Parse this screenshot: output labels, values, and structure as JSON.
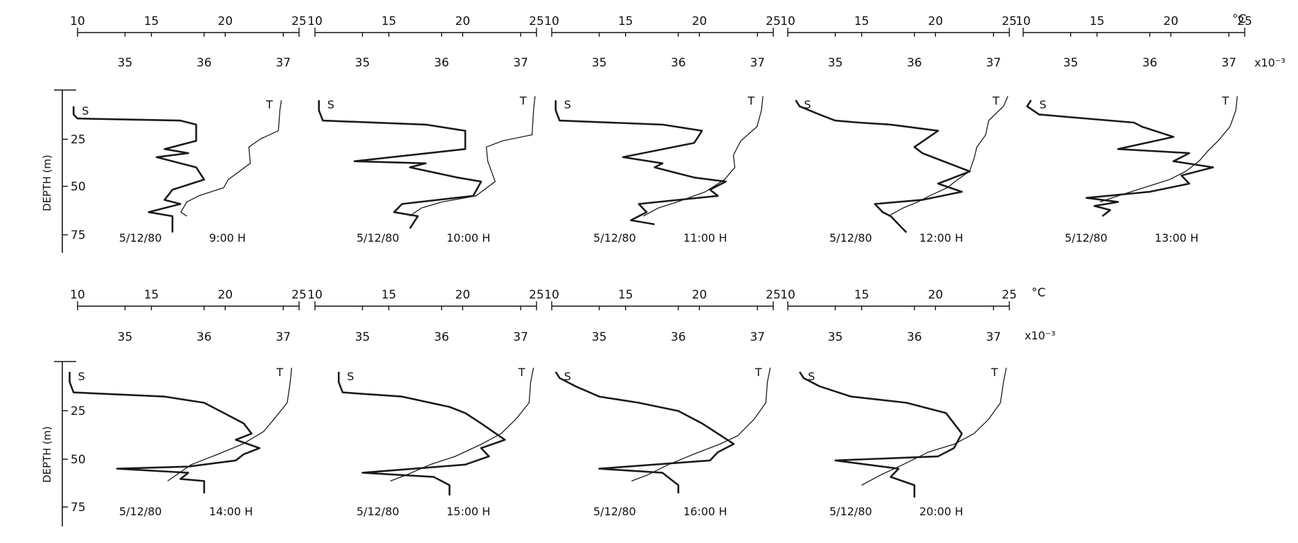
{
  "figure": {
    "temp_unit": "°C",
    "sal_unit": "x10⁻³",
    "depth_label": "DEPTH (m)",
    "temp_ticks": [
      "10",
      "15",
      "20",
      "25"
    ],
    "sal_ticks": [
      "35",
      "36",
      "37"
    ],
    "depth_ticks": [
      "25",
      "50",
      "75"
    ],
    "salinity_curve_label": "S",
    "temperature_curve_label": "T"
  },
  "chart_data": [
    {
      "type": "line",
      "date": "5/12/80",
      "time": "9:00 H",
      "x_temperature_range": [
        10,
        25
      ],
      "x_salinity_range": [
        34.4,
        37.2
      ],
      "y_depth_range": [
        0,
        80
      ],
      "series": [
        {
          "name": "S",
          "x": [
            34.35,
            34.35,
            34.4,
            35.7,
            35.9,
            35.9,
            35.5,
            35.8,
            35.4,
            35.9,
            36.0,
            35.6,
            35.5,
            35.7,
            35.3,
            35.6,
            35.6
          ],
          "y": [
            8,
            12,
            14,
            15,
            17,
            25,
            29,
            31,
            33,
            38,
            44,
            49,
            54,
            56,
            60,
            62,
            70
          ]
        },
        {
          "name": "T",
          "x": [
            23.8,
            23.7,
            23.6,
            22.4,
            21.6,
            21.7,
            20.2,
            19.9,
            18.2,
            17.4,
            17.0,
            17.4
          ],
          "y": [
            5,
            10,
            20,
            24,
            28,
            36,
            44,
            48,
            52,
            55,
            60,
            62
          ]
        }
      ]
    },
    {
      "type": "line",
      "date": "5/12/80",
      "time": "10:00 H",
      "x_temperature_range": [
        10,
        25
      ],
      "x_salinity_range": [
        34.4,
        37.2
      ],
      "y_depth_range": [
        0,
        80
      ],
      "series": [
        {
          "name": "S",
          "x": [
            34.45,
            34.45,
            34.5,
            35.8,
            36.3,
            36.3,
            34.9,
            35.8,
            35.6,
            36.2,
            36.5,
            36.4,
            35.5,
            35.4,
            35.7,
            35.6
          ],
          "y": [
            5,
            10,
            15,
            17,
            20,
            29,
            35,
            36,
            38,
            43,
            45,
            52,
            56,
            60,
            62,
            68
          ]
        },
        {
          "name": "T",
          "x": [
            24.9,
            24.8,
            24.7,
            22.7,
            21.6,
            21.7,
            22.2,
            20.9,
            18.6,
            17.2,
            16.4
          ],
          "y": [
            3,
            10,
            22,
            25,
            28,
            35,
            45,
            52,
            55,
            58,
            62
          ]
        }
      ]
    },
    {
      "type": "line",
      "date": "5/12/80",
      "time": "11:00 H",
      "x_temperature_range": [
        10,
        25
      ],
      "x_salinity_range": [
        34.4,
        37.2
      ],
      "y_depth_range": [
        0,
        80
      ],
      "series": [
        {
          "name": "S",
          "x": [
            34.45,
            34.45,
            34.5,
            35.8,
            36.3,
            36.2,
            35.3,
            35.8,
            35.7,
            36.2,
            36.6,
            36.4,
            36.5,
            35.5,
            35.6,
            35.4,
            35.7
          ],
          "y": [
            5,
            10,
            15,
            17,
            20,
            26,
            33,
            36,
            38,
            43,
            45,
            49,
            52,
            56,
            60,
            64,
            66
          ]
        },
        {
          "name": "T",
          "x": [
            24.3,
            24.2,
            23.9,
            22.8,
            22.3,
            22.4,
            21.7,
            20.4,
            18.5,
            17.2,
            16.2
          ],
          "y": [
            3,
            10,
            18,
            25,
            32,
            38,
            44,
            50,
            55,
            58,
            62
          ]
        }
      ]
    },
    {
      "type": "line",
      "date": "5/12/80",
      "time": "12:00 H",
      "x_temperature_range": [
        10,
        25
      ],
      "x_salinity_range": [
        34.4,
        37.2
      ],
      "y_depth_range": [
        0,
        80
      ],
      "series": [
        {
          "name": "S",
          "x": [
            34.5,
            34.55,
            34.8,
            35.0,
            35.3,
            35.7,
            36.3,
            36.0,
            36.1,
            36.7,
            36.3,
            36.6,
            36.1,
            35.5,
            35.6,
            35.7,
            35.9
          ],
          "y": [
            5,
            8,
            12,
            15,
            16,
            17,
            20,
            28,
            31,
            40,
            46,
            50,
            54,
            56,
            60,
            62,
            70
          ]
        },
        {
          "name": "T",
          "x": [
            24.9,
            24.6,
            23.6,
            23.4,
            22.8,
            22.6,
            22.3,
            21.5,
            20.8,
            19.6,
            18.8,
            17.8,
            16.8
          ],
          "y": [
            3,
            8,
            15,
            22,
            28,
            34,
            40,
            44,
            48,
            52,
            55,
            58,
            62
          ]
        }
      ]
    },
    {
      "type": "line",
      "date": "5/12/80",
      "time": "13:00 H",
      "x_temperature_range": [
        10,
        25
      ],
      "x_salinity_range": [
        34.4,
        37.2
      ],
      "y_depth_range": [
        0,
        80
      ],
      "series": [
        {
          "name": "S",
          "x": [
            34.5,
            34.45,
            34.6,
            35.8,
            35.9,
            36.3,
            35.6,
            36.5,
            36.3,
            36.8,
            36.4,
            36.5,
            36.0,
            35.2,
            35.6,
            35.3,
            35.5,
            35.4
          ],
          "y": [
            5,
            8,
            12,
            16,
            18,
            23,
            29,
            31,
            35,
            38,
            42,
            46,
            50,
            53,
            55,
            57,
            59,
            62
          ]
        },
        {
          "name": "T",
          "x": [
            24.5,
            24.4,
            24.0,
            23.2,
            22.5,
            21.9,
            21.0,
            19.9,
            18.6,
            17.3,
            16.0,
            15.2
          ],
          "y": [
            3,
            10,
            18,
            25,
            30,
            35,
            40,
            44,
            47,
            50,
            53,
            55
          ]
        }
      ]
    },
    {
      "type": "line",
      "date": "5/12/80",
      "time": "14:00 H",
      "x_temperature_range": [
        10,
        25
      ],
      "x_salinity_range": [
        34.4,
        37.2
      ],
      "y_depth_range": [
        0,
        80
      ],
      "series": [
        {
          "name": "S",
          "x": [
            34.3,
            34.3,
            34.35,
            35.5,
            36.0,
            36.2,
            36.5,
            36.6,
            36.4,
            36.7,
            36.5,
            36.4,
            35.8,
            34.9,
            35.8,
            35.7,
            36.0,
            36.0
          ],
          "y": [
            5,
            10,
            15,
            17,
            20,
            24,
            30,
            35,
            38,
            42,
            45,
            48,
            51,
            52,
            54,
            57,
            58,
            64
          ]
        },
        {
          "name": "T",
          "x": [
            24.5,
            24.4,
            24.2,
            23.3,
            22.6,
            21.2,
            19.5,
            17.7,
            16.7,
            16.1
          ],
          "y": [
            3,
            10,
            20,
            28,
            34,
            40,
            45,
            50,
            55,
            58
          ]
        }
      ]
    },
    {
      "type": "line",
      "date": "5/12/80",
      "time": "15:00 H",
      "x_temperature_range": [
        10,
        25
      ],
      "x_salinity_range": [
        34.4,
        37.2
      ],
      "y_depth_range": [
        0,
        80
      ],
      "series": [
        {
          "name": "S",
          "x": [
            34.7,
            34.7,
            34.75,
            35.5,
            36.1,
            36.3,
            36.5,
            36.8,
            36.5,
            36.6,
            36.3,
            35.0,
            35.9,
            36.0,
            36.1,
            36.1
          ],
          "y": [
            5,
            10,
            15,
            17,
            22,
            25,
            30,
            38,
            42,
            46,
            50,
            54,
            56,
            58,
            60,
            65
          ]
        },
        {
          "name": "T",
          "x": [
            24.8,
            24.6,
            24.5,
            23.6,
            22.6,
            21.3,
            19.5,
            17.8,
            16.2,
            15.1
          ],
          "y": [
            3,
            10,
            20,
            28,
            35,
            40,
            46,
            50,
            55,
            58
          ]
        }
      ]
    },
    {
      "type": "line",
      "date": "5/12/80",
      "time": "16:00 H",
      "x_temperature_range": [
        10,
        25
      ],
      "x_salinity_range": [
        34.4,
        37.2
      ],
      "y_depth_range": [
        0,
        80
      ],
      "series": [
        {
          "name": "S",
          "x": [
            34.45,
            34.5,
            34.7,
            35.0,
            35.5,
            36.0,
            36.3,
            36.5,
            36.7,
            36.5,
            36.4,
            35.0,
            35.8,
            35.9,
            36.0,
            36.0
          ],
          "y": [
            5,
            8,
            12,
            17,
            20,
            24,
            30,
            35,
            40,
            44,
            48,
            52,
            54,
            57,
            60,
            64
          ]
        },
        {
          "name": "T",
          "x": [
            24.8,
            24.6,
            24.5,
            23.7,
            22.6,
            21.4,
            19.6,
            17.9,
            16.5,
            15.4
          ],
          "y": [
            3,
            10,
            20,
            28,
            36,
            40,
            45,
            50,
            55,
            58
          ]
        }
      ]
    },
    {
      "type": "line",
      "date": "5/12/80",
      "time": "20:00 H",
      "x_temperature_range": [
        10,
        25
      ],
      "x_salinity_range": [
        34.4,
        37.2
      ],
      "y_depth_range": [
        0,
        80
      ],
      "series": [
        {
          "name": "S",
          "x": [
            34.55,
            34.6,
            34.8,
            35.2,
            35.9,
            36.4,
            36.6,
            36.5,
            36.3,
            35.0,
            35.8,
            35.7,
            36.0,
            36.0
          ],
          "y": [
            5,
            8,
            12,
            17,
            20,
            25,
            35,
            42,
            46,
            48,
            52,
            56,
            60,
            66
          ]
        },
        {
          "name": "T",
          "x": [
            24.8,
            24.6,
            24.4,
            23.6,
            22.6,
            21.3,
            19.5,
            17.8,
            16.3,
            15.0
          ],
          "y": [
            3,
            10,
            20,
            28,
            35,
            40,
            44,
            50,
            55,
            60
          ]
        }
      ]
    }
  ]
}
